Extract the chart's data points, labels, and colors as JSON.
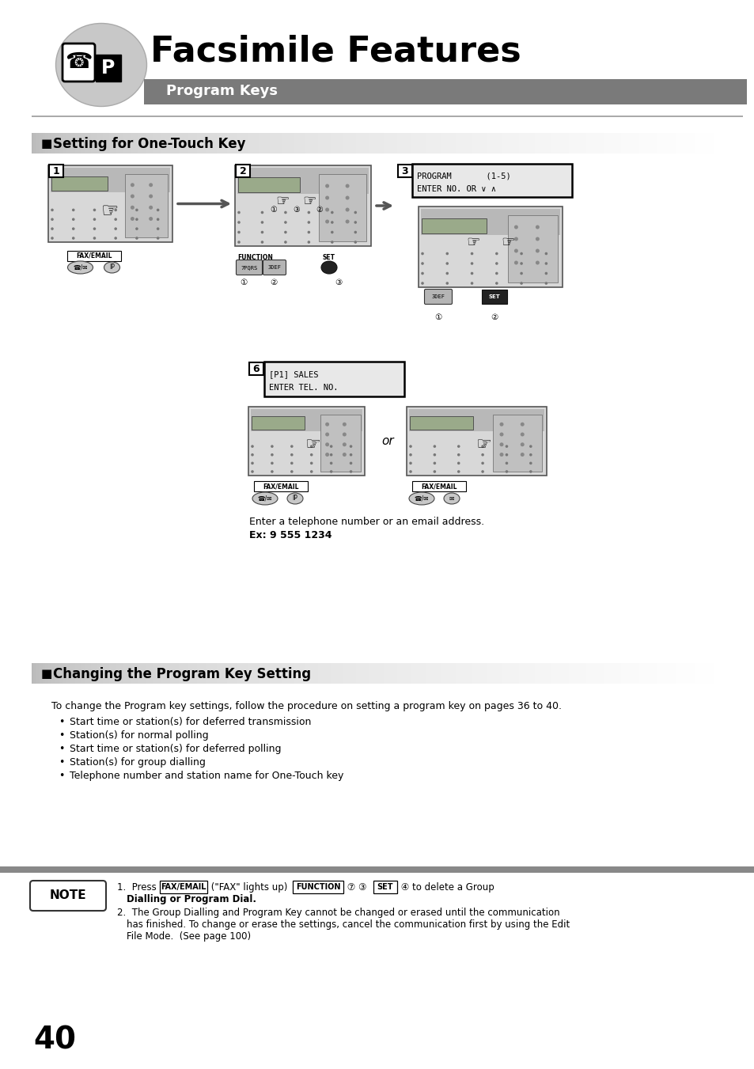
{
  "page_number": "40",
  "main_title": "Facsimile Features",
  "sub_title": "Program Keys",
  "section1_title": "Setting for One-Touch Key",
  "section2_title": "Changing the Program Key Setting",
  "enter_text": "Enter a telephone number or an email address.",
  "ex_text": "Ex: 9 555 1234",
  "section2_body": "To change the Program key settings, follow the procedure on setting a program key on pages 36 to 40.",
  "bullets": [
    "Start time or station(s) for deferred transmission",
    "Station(s) for normal polling",
    "Start time or station(s) for deferred polling",
    "Station(s) for group dialling",
    "Telephone number and station name for One-Touch key"
  ],
  "note_label": "NOTE",
  "bg_color": "#ffffff",
  "header_gray": "#7a7a7a",
  "section_bar_gray": "#b8b8b8",
  "icon_bg": "#c8c8c8",
  "fax_body": "#d8d8d8",
  "fax_border": "#555555",
  "lcd_bg": "#e8e8e8",
  "note_bar_gray": "#888888"
}
